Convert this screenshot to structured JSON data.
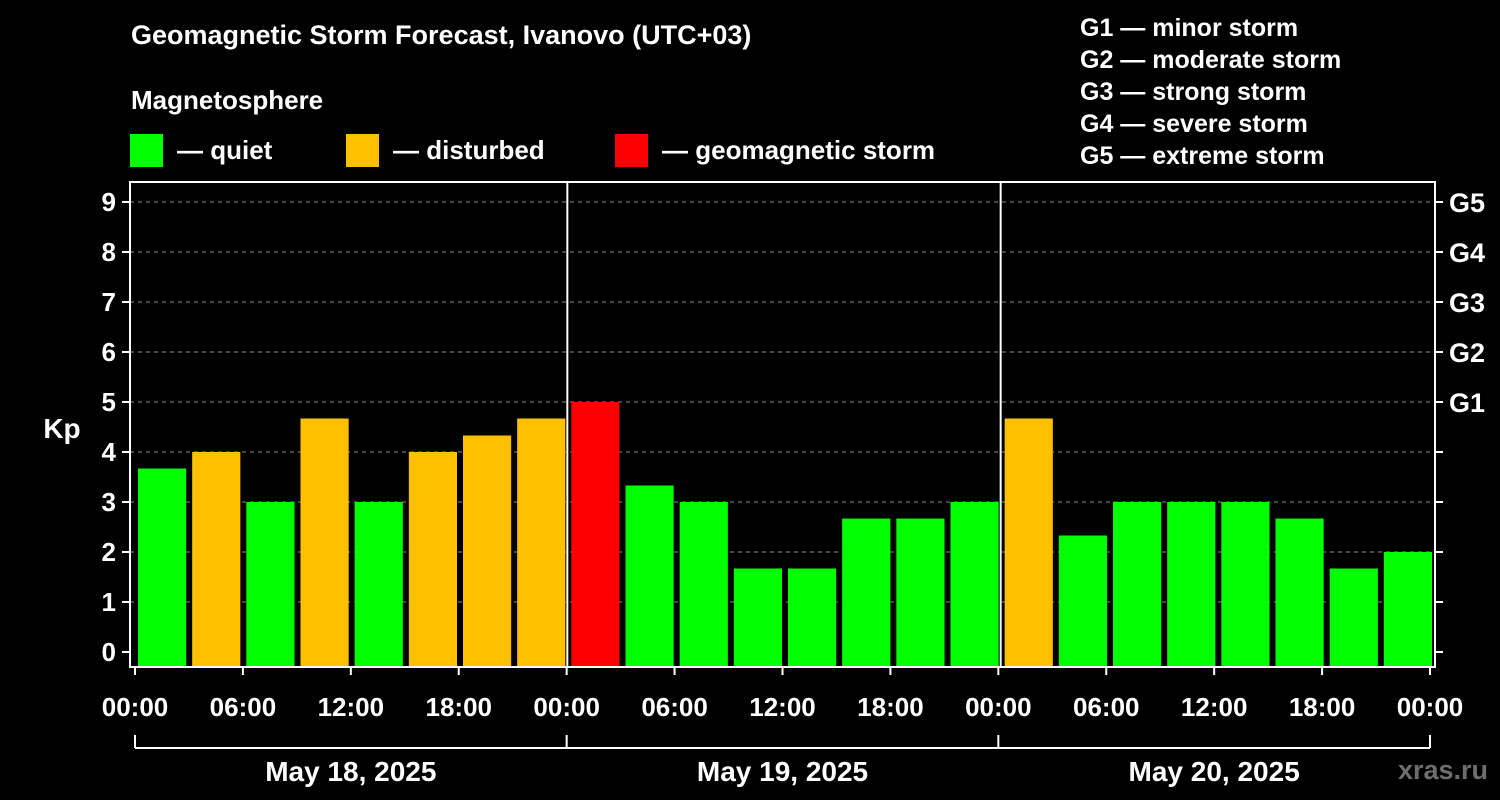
{
  "title": "Geomagnetic Storm Forecast, Ivanovo (UTC+03)",
  "subtitle": "Magnetosphere",
  "legend": [
    {
      "label": "— quiet",
      "color": "#00ff00"
    },
    {
      "label": "— disturbed",
      "color": "#ffc000"
    },
    {
      "label": "— geomagnetic storm",
      "color": "#ff0000"
    }
  ],
  "g_scale": [
    "G1 — minor storm",
    "G2 — moderate storm",
    "G3 — strong storm",
    "G4 — severe storm",
    "G5 — extreme storm"
  ],
  "watermark": "xras.ru",
  "chart_data": {
    "type": "bar",
    "ylabel": "Kp",
    "ylim": [
      0,
      9
    ],
    "yticks": [
      0,
      1,
      2,
      3,
      4,
      5,
      6,
      7,
      8,
      9
    ],
    "right_ticks": [
      {
        "value": 5,
        "label": "G1"
      },
      {
        "value": 6,
        "label": "G2"
      },
      {
        "value": 7,
        "label": "G3"
      },
      {
        "value": 8,
        "label": "G4"
      },
      {
        "value": 9,
        "label": "G5"
      }
    ],
    "xtick_labels": [
      "00:00",
      "06:00",
      "12:00",
      "18:00",
      "00:00",
      "06:00",
      "12:00",
      "18:00",
      "00:00",
      "06:00",
      "12:00",
      "18:00",
      "00:00"
    ],
    "days": [
      "May 18, 2025",
      "May 19, 2025",
      "May 20, 2025"
    ],
    "values": [
      3.67,
      4.0,
      3.0,
      4.67,
      3.0,
      4.0,
      4.33,
      4.67,
      5.0,
      3.33,
      3.0,
      1.67,
      1.67,
      2.67,
      2.67,
      3.0,
      4.67,
      2.33,
      3.0,
      3.0,
      3.0,
      2.67,
      1.67,
      2.0
    ],
    "bar_colors": [
      "quiet",
      "disturbed",
      "quiet",
      "disturbed",
      "quiet",
      "disturbed",
      "disturbed",
      "disturbed",
      "storm",
      "quiet",
      "quiet",
      "quiet",
      "quiet",
      "quiet",
      "quiet",
      "quiet",
      "disturbed",
      "quiet",
      "quiet",
      "quiet",
      "quiet",
      "quiet",
      "quiet",
      "quiet"
    ],
    "colors": {
      "quiet": "#00ff00",
      "disturbed": "#ffc000",
      "storm": "#ff0000",
      "grid": "#8c8c8c"
    },
    "grid": true
  }
}
